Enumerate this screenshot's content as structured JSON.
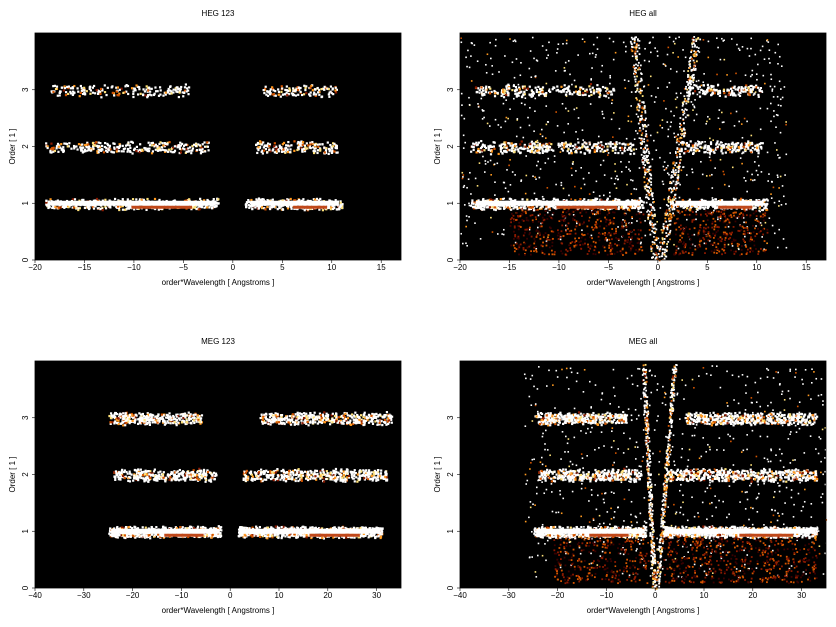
{
  "chart_data": [
    {
      "type": "heatmap",
      "title": "HEG 123",
      "xlabel": "order*Wavelength [ Angstroms ]",
      "ylabel": "Order [ 1 ]",
      "xlim": [
        -20,
        17
      ],
      "ylim": [
        0,
        4
      ],
      "xticks": [
        "−20",
        "−15",
        "−10",
        "−5",
        "0",
        "5",
        "10",
        "15"
      ],
      "yticks": [
        "0",
        "1",
        "2",
        "3"
      ],
      "colormap": [
        "#000000",
        "#3a0000",
        "#8b1a00",
        "#d45500",
        "#ff9a20",
        "#ffe27a",
        "#ffffff"
      ],
      "bands": [
        {
          "order": 1,
          "segments": [
            [
              -19,
              -1.5
            ],
            [
              1.2,
              11
            ]
          ],
          "strength": 1.0
        },
        {
          "order": 2,
          "segments": [
            [
              -19,
              -2.5
            ],
            [
              2.2,
              10.5
            ]
          ],
          "strength": 0.55
        },
        {
          "order": 3,
          "segments": [
            [
              -18.5,
              -4.5
            ],
            [
              3.0,
              10.5
            ]
          ],
          "strength": 0.35
        }
      ],
      "wedge": false
    },
    {
      "type": "heatmap",
      "title": "HEG all",
      "xlabel": "order*Wavelength [ Angstroms ]",
      "ylabel": "Order [ 1 ]",
      "xlim": [
        -20,
        17
      ],
      "ylim": [
        0,
        4
      ],
      "xticks": [
        "−20",
        "−15",
        "−10",
        "−5",
        "0",
        "5",
        "10",
        "15"
      ],
      "yticks": [
        "0",
        "1",
        "2",
        "3"
      ],
      "colormap": [
        "#000000",
        "#3a0000",
        "#8b1a00",
        "#d45500",
        "#ff9a20",
        "#ffe27a",
        "#ffffff"
      ],
      "bands": [
        {
          "order": 1,
          "segments": [
            [
              -19,
              -1.5
            ],
            [
              1.2,
              11
            ]
          ],
          "strength": 1.0
        },
        {
          "order": 2,
          "segments": [
            [
              -19,
              -2.5
            ],
            [
              2.2,
              10.5
            ]
          ],
          "strength": 0.6
        },
        {
          "order": 3,
          "segments": [
            [
              -18.5,
              -4.5
            ],
            [
              3.0,
              10.5
            ]
          ],
          "strength": 0.45
        }
      ],
      "wedge": true
    },
    {
      "type": "heatmap",
      "title": "MEG 123",
      "xlabel": "order*Wavelength [ Angstroms ]",
      "ylabel": "Order [ 1 ]",
      "xlim": [
        -40,
        35
      ],
      "ylim": [
        0,
        4
      ],
      "xticks": [
        "−40",
        "−30",
        "−20",
        "−10",
        "0",
        "10",
        "20",
        "30"
      ],
      "yticks": [
        "0",
        "1",
        "2",
        "3"
      ],
      "colormap": [
        "#000000",
        "#3a0000",
        "#8b1a00",
        "#d45500",
        "#ff9a20",
        "#ffe27a",
        "#ffffff"
      ],
      "bands": [
        {
          "order": 1,
          "segments": [
            [
              -25,
              -2
            ],
            [
              1.5,
              31
            ]
          ],
          "strength": 1.0
        },
        {
          "order": 2,
          "segments": [
            [
              -24,
              -3
            ],
            [
              2.5,
              32
            ]
          ],
          "strength": 0.55
        },
        {
          "order": 3,
          "segments": [
            [
              -25,
              -6
            ],
            [
              6,
              33
            ]
          ],
          "strength": 0.6
        }
      ],
      "wedge": false
    },
    {
      "type": "heatmap",
      "title": "MEG all",
      "xlabel": "order*Wavelength [ Angstroms ]",
      "ylabel": "Order [ 1 ]",
      "xlim": [
        -40,
        35
      ],
      "ylim": [
        0,
        4
      ],
      "xticks": [
        "−40",
        "−30",
        "−20",
        "−10",
        "0",
        "10",
        "20",
        "30"
      ],
      "yticks": [
        "0",
        "1",
        "2",
        "3"
      ],
      "colormap": [
        "#000000",
        "#3a0000",
        "#8b1a00",
        "#d45500",
        "#ff9a20",
        "#ffe27a",
        "#ffffff"
      ],
      "bands": [
        {
          "order": 1,
          "segments": [
            [
              -25,
              -2
            ],
            [
              1.5,
              33
            ]
          ],
          "strength": 1.0
        },
        {
          "order": 2,
          "segments": [
            [
              -24,
              -3
            ],
            [
              2.5,
              33
            ]
          ],
          "strength": 0.6
        },
        {
          "order": 3,
          "segments": [
            [
              -25,
              -6
            ],
            [
              6,
              33
            ]
          ],
          "strength": 0.65
        }
      ],
      "wedge": true
    }
  ]
}
